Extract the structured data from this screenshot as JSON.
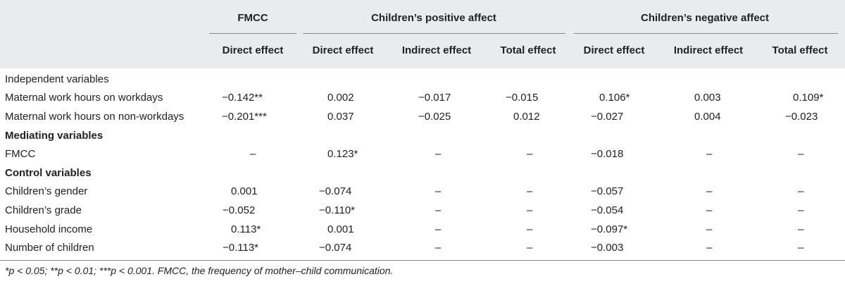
{
  "header": {
    "groups": [
      {
        "label": "FMCC"
      },
      {
        "label": "Children’s positive affect"
      },
      {
        "label": "Children’s negative affect"
      }
    ],
    "columns": [
      {
        "label": "Direct effect"
      },
      {
        "label": "Direct effect"
      },
      {
        "label": "Indirect effect"
      },
      {
        "label": "Total effect"
      },
      {
        "label": "Direct effect"
      },
      {
        "label": "Indirect effect"
      },
      {
        "label": "Total effect"
      }
    ]
  },
  "rows": [
    {
      "label": "Independent variables",
      "section": true,
      "bold": false,
      "cells": []
    },
    {
      "label": "Maternal work hours on workdays",
      "section": false,
      "bold": false,
      "cells": [
        "−0.142**",
        "0.002",
        "−0.017",
        "−0.015",
        "0.106*",
        "0.003",
        "0.109*"
      ]
    },
    {
      "label": "Maternal work hours on non-workdays",
      "section": false,
      "bold": false,
      "cells": [
        "−0.201***",
        "0.037",
        "−0.025",
        "0.012",
        "−0.027",
        "0.004",
        "−0.023"
      ]
    },
    {
      "label": "Mediating variables",
      "section": true,
      "bold": true,
      "cells": []
    },
    {
      "label": "FMCC",
      "section": false,
      "bold": false,
      "cells": [
        "–",
        "0.123*",
        "–",
        "–",
        "−0.018",
        "–",
        "–"
      ]
    },
    {
      "label": "Control variables",
      "section": true,
      "bold": true,
      "cells": []
    },
    {
      "label": "Children’s gender",
      "section": false,
      "bold": false,
      "cells": [
        "0.001",
        "−0.074",
        "–",
        "–",
        "−0.057",
        "–",
        "–"
      ]
    },
    {
      "label": "Children’s grade",
      "section": false,
      "bold": false,
      "cells": [
        "−0.052",
        "−0.110*",
        "–",
        "–",
        "−0.054",
        "–",
        "–"
      ]
    },
    {
      "label": "Household income",
      "section": false,
      "bold": false,
      "cells": [
        "0.113*",
        "0.001",
        "–",
        "–",
        "−0.097*",
        "–",
        "–"
      ]
    },
    {
      "label": "Number of children",
      "section": false,
      "bold": false,
      "cells": [
        "−0.113*",
        "−0.074",
        "–",
        "–",
        "−0.003",
        "–",
        "–"
      ]
    }
  ],
  "footnote": "*p < 0.05; **p < 0.01; ***p < 0.001. FMCC, the frequency of mother–child communication.",
  "colors": {
    "header_bg": "#e9ebec",
    "text": "#222222",
    "rule": "#8a8a8a"
  }
}
